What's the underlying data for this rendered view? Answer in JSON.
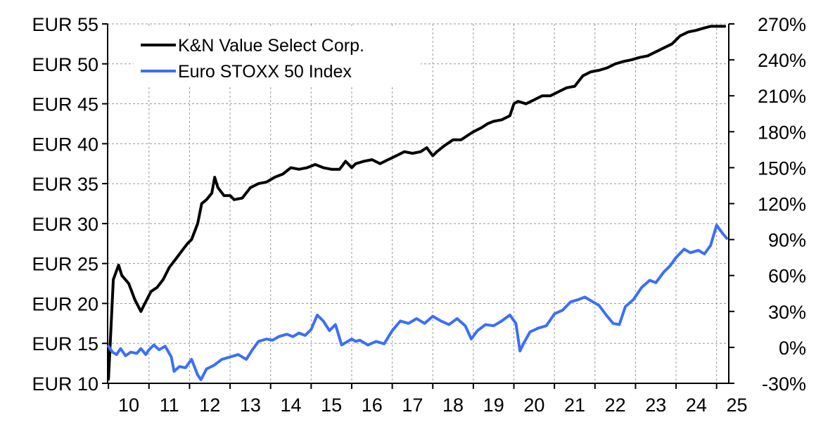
{
  "chart_data": {
    "type": "line",
    "title": "",
    "xlabel": "",
    "ylabel": "",
    "x_ticks": [
      "10",
      "11",
      "12",
      "13",
      "14",
      "15",
      "16",
      "17",
      "18",
      "19",
      "20",
      "21",
      "22",
      "23",
      "24",
      "25"
    ],
    "xlim": [
      2009.98,
      2025.3
    ],
    "left_axis": {
      "ylim": [
        10,
        55
      ],
      "ticks": [
        10,
        15,
        20,
        25,
        30,
        35,
        40,
        45,
        50,
        55
      ],
      "tick_labels": [
        "EUR 10",
        "EUR 15",
        "EUR 20",
        "EUR 25",
        "EUR 30",
        "EUR 35",
        "EUR 40",
        "EUR 45",
        "EUR 50",
        "EUR 55"
      ]
    },
    "right_axis": {
      "ylim": [
        -30,
        270
      ],
      "ticks": [
        -30,
        0,
        30,
        60,
        90,
        120,
        150,
        180,
        210,
        240,
        270
      ],
      "tick_labels": [
        "-30%",
        "0%",
        "30%",
        "60%",
        "90%",
        "120%",
        "150%",
        "180%",
        "210%",
        "240%",
        "270%"
      ]
    },
    "grid": true,
    "legend": "top-left",
    "series": [
      {
        "name": "K&N Value Select Corp.",
        "axis": "left",
        "color": "#000000",
        "x": [
          2010.0,
          2010.12,
          2010.25,
          2010.33,
          2010.5,
          2010.65,
          2010.8,
          2010.9,
          2011.05,
          2011.2,
          2011.35,
          2011.5,
          2011.65,
          2011.8,
          2011.95,
          2012.05,
          2012.2,
          2012.3,
          2012.42,
          2012.55,
          2012.62,
          2012.7,
          2012.85,
          2013.0,
          2013.1,
          2013.3,
          2013.5,
          2013.7,
          2013.9,
          2014.1,
          2014.3,
          2014.5,
          2014.7,
          2014.9,
          2015.1,
          2015.3,
          2015.5,
          2015.7,
          2015.85,
          2016.0,
          2016.1,
          2016.3,
          2016.5,
          2016.7,
          2016.9,
          2017.1,
          2017.3,
          2017.5,
          2017.7,
          2017.85,
          2018.0,
          2018.1,
          2018.3,
          2018.5,
          2018.7,
          2018.85,
          2019.0,
          2019.2,
          2019.35,
          2019.5,
          2019.7,
          2019.9,
          2020.0,
          2020.1,
          2020.3,
          2020.5,
          2020.7,
          2020.9,
          2021.1,
          2021.3,
          2021.5,
          2021.7,
          2021.9,
          2022.1,
          2022.3,
          2022.5,
          2022.7,
          2022.9,
          2023.1,
          2023.3,
          2023.5,
          2023.7,
          2023.9,
          2024.1,
          2024.3,
          2024.5,
          2024.7,
          2024.85,
          2025.0,
          2025.2
        ],
        "values": [
          10.5,
          23.0,
          24.8,
          23.5,
          22.5,
          20.5,
          19.0,
          20.0,
          21.5,
          22.0,
          23.0,
          24.5,
          25.5,
          26.5,
          27.5,
          28.0,
          30.0,
          32.5,
          33.0,
          33.8,
          35.8,
          34.5,
          33.5,
          33.5,
          33.0,
          33.2,
          34.5,
          35.0,
          35.2,
          35.8,
          36.2,
          37.0,
          36.8,
          37.0,
          37.4,
          37.0,
          36.8,
          36.8,
          37.8,
          37.0,
          37.5,
          37.8,
          38.0,
          37.5,
          38.0,
          38.5,
          39.0,
          38.8,
          39.0,
          39.5,
          38.5,
          39.0,
          39.8,
          40.5,
          40.5,
          41.0,
          41.5,
          42.0,
          42.5,
          42.8,
          43.0,
          43.5,
          45.0,
          45.3,
          45.0,
          45.5,
          46.0,
          46.0,
          46.5,
          47.0,
          47.2,
          48.5,
          49.0,
          49.2,
          49.5,
          50.0,
          50.3,
          50.5,
          50.8,
          51.0,
          51.5,
          52.0,
          52.5,
          53.5,
          54.0,
          54.2,
          54.5,
          54.7,
          54.7,
          54.7
        ]
      },
      {
        "name": "Euro STOXX 50 Index",
        "axis": "right",
        "color": "#3b6ff5",
        "x": [
          2010.0,
          2010.1,
          2010.2,
          2010.3,
          2010.42,
          2010.55,
          2010.7,
          2010.8,
          2010.92,
          2011.0,
          2011.12,
          2011.25,
          2011.4,
          2011.55,
          2011.62,
          2011.75,
          2011.9,
          2012.05,
          2012.2,
          2012.28,
          2012.42,
          2012.6,
          2012.8,
          2013.0,
          2013.2,
          2013.4,
          2013.55,
          2013.7,
          2013.9,
          2014.05,
          2014.2,
          2014.4,
          2014.55,
          2014.7,
          2014.85,
          2015.0,
          2015.15,
          2015.3,
          2015.45,
          2015.6,
          2015.75,
          2016.0,
          2016.1,
          2016.2,
          2016.4,
          2016.6,
          2016.8,
          2017.0,
          2017.2,
          2017.4,
          2017.6,
          2017.8,
          2018.0,
          2018.2,
          2018.4,
          2018.6,
          2018.8,
          2018.95,
          2019.1,
          2019.3,
          2019.5,
          2019.7,
          2019.9,
          2020.05,
          2020.15,
          2020.25,
          2020.4,
          2020.6,
          2020.8,
          2021.0,
          2021.2,
          2021.4,
          2021.6,
          2021.75,
          2021.9,
          2022.1,
          2022.3,
          2022.45,
          2022.6,
          2022.75,
          2022.95,
          2023.15,
          2023.35,
          2023.5,
          2023.7,
          2023.85,
          2024.0,
          2024.2,
          2024.35,
          2024.55,
          2024.7,
          2024.85,
          2025.0,
          2025.15,
          2025.25
        ],
        "values": [
          1,
          -4,
          -6,
          -1,
          -7,
          -4,
          -5,
          -1,
          -6,
          -2,
          2,
          -2,
          1,
          -8,
          -20,
          -16,
          -17,
          -10,
          -23,
          -27,
          -18,
          -15,
          -10,
          -8,
          -6,
          -10,
          -2,
          5,
          7,
          6,
          9,
          11,
          9,
          12,
          10,
          15,
          27,
          22,
          14,
          19,
          2,
          7,
          5,
          6,
          2,
          5,
          3,
          14,
          22,
          20,
          24,
          20,
          26,
          22,
          19,
          24,
          18,
          7,
          14,
          19,
          18,
          22,
          27,
          20,
          -3,
          4,
          13,
          16,
          18,
          28,
          31,
          38,
          40,
          42,
          39,
          35,
          26,
          20,
          19,
          34,
          40,
          50,
          56,
          54,
          63,
          68,
          75,
          82,
          79,
          81,
          78,
          85,
          102,
          95,
          91
        ]
      }
    ]
  }
}
